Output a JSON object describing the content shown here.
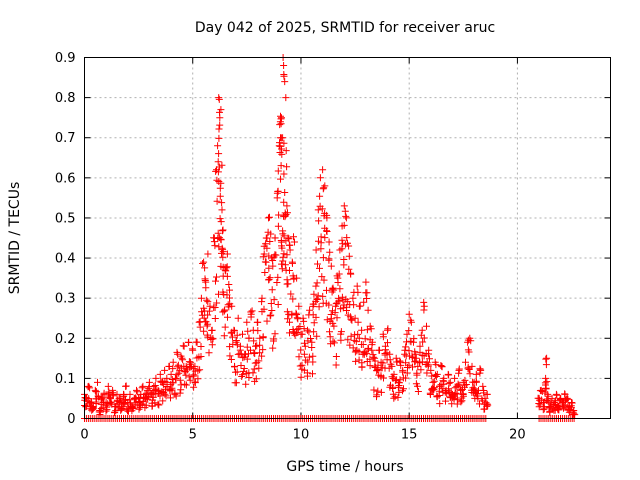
{
  "chart_data": {
    "type": "scatter",
    "title": "Day 042 of 2025, SRMTID for receiver aruc",
    "xlabel": "GPS time / hours",
    "ylabel": "SRMTID / TECUs",
    "xlim": [
      0,
      24.3
    ],
    "ylim": [
      0,
      0.9
    ],
    "xticks": [
      0,
      5,
      10,
      15,
      20
    ],
    "xtick_labels": [
      "0",
      "5",
      "10",
      "15",
      "20"
    ],
    "yticks": [
      0,
      0.1,
      0.2,
      0.3,
      0.4,
      0.5,
      0.6,
      0.7,
      0.8,
      0.9
    ],
    "ytick_labels": [
      "0",
      "0.1",
      "0.2",
      "0.3",
      "0.4",
      "0.5",
      "0.6",
      "0.7",
      "0.8",
      "0.9"
    ],
    "grid": true,
    "marker": "+",
    "color": "#ff0000",
    "series": [
      {
        "name": "SRMTID",
        "points": [
          [
            0.0,
            0.06
          ],
          [
            0.1,
            0.05
          ],
          [
            0.2,
            0.08
          ],
          [
            0.3,
            0.04
          ],
          [
            0.4,
            0.03
          ],
          [
            0.5,
            0.07
          ],
          [
            0.6,
            0.09
          ],
          [
            0.7,
            0.02
          ],
          [
            0.8,
            0.05
          ],
          [
            0.9,
            0.06
          ],
          [
            1.0,
            0.04
          ],
          [
            1.1,
            0.08
          ],
          [
            1.2,
            0.05
          ],
          [
            1.3,
            0.07
          ],
          [
            1.4,
            0.03
          ],
          [
            1.5,
            0.06
          ],
          [
            1.6,
            0.05
          ],
          [
            1.7,
            0.04
          ],
          [
            1.8,
            0.06
          ],
          [
            1.9,
            0.08
          ],
          [
            2.0,
            0.04
          ],
          [
            2.1,
            0.06
          ],
          [
            2.2,
            0.03
          ],
          [
            2.3,
            0.05
          ],
          [
            2.4,
            0.07
          ],
          [
            2.5,
            0.05
          ],
          [
            2.6,
            0.06
          ],
          [
            2.7,
            0.08
          ],
          [
            2.8,
            0.06
          ],
          [
            2.9,
            0.07
          ],
          [
            3.0,
            0.09
          ],
          [
            3.1,
            0.06
          ],
          [
            3.2,
            0.08
          ],
          [
            3.3,
            0.1
          ],
          [
            3.4,
            0.07
          ],
          [
            3.5,
            0.11
          ],
          [
            3.6,
            0.09
          ],
          [
            3.7,
            0.12
          ],
          [
            3.8,
            0.1
          ],
          [
            3.9,
            0.13
          ],
          [
            4.0,
            0.11
          ],
          [
            4.1,
            0.14
          ],
          [
            4.2,
            0.1
          ],
          [
            4.3,
            0.16
          ],
          [
            4.4,
            0.12
          ],
          [
            4.5,
            0.15
          ],
          [
            4.6,
            0.18
          ],
          [
            4.7,
            0.13
          ],
          [
            4.8,
            0.19
          ],
          [
            4.9,
            0.14
          ],
          [
            5.0,
            0.17
          ],
          [
            5.1,
            0.13
          ],
          [
            5.2,
            0.19
          ],
          [
            5.3,
            0.24
          ],
          [
            5.4,
            0.3
          ],
          [
            5.5,
            0.39
          ],
          [
            5.6,
            0.34
          ],
          [
            5.7,
            0.41
          ],
          [
            5.8,
            0.28
          ],
          [
            5.9,
            0.22
          ],
          [
            6.0,
            0.45
          ],
          [
            6.1,
            0.62
          ],
          [
            6.15,
            0.68
          ],
          [
            6.2,
            0.8
          ],
          [
            6.25,
            0.75
          ],
          [
            6.3,
            0.77
          ],
          [
            6.35,
            0.52
          ],
          [
            6.4,
            0.47
          ],
          [
            6.5,
            0.37
          ],
          [
            6.6,
            0.41
          ],
          [
            6.7,
            0.32
          ],
          [
            6.8,
            0.28
          ],
          [
            6.9,
            0.22
          ],
          [
            7.0,
            0.19
          ],
          [
            7.1,
            0.25
          ],
          [
            7.2,
            0.18
          ],
          [
            7.3,
            0.21
          ],
          [
            7.4,
            0.16
          ],
          [
            7.5,
            0.24
          ],
          [
            7.6,
            0.2
          ],
          [
            7.7,
            0.26
          ],
          [
            7.8,
            0.22
          ],
          [
            7.9,
            0.18
          ],
          [
            8.0,
            0.24
          ],
          [
            8.1,
            0.2
          ],
          [
            8.2,
            0.3
          ],
          [
            8.3,
            0.41
          ],
          [
            8.4,
            0.45
          ],
          [
            8.5,
            0.5
          ],
          [
            8.6,
            0.46
          ],
          [
            8.7,
            0.38
          ],
          [
            8.8,
            0.45
          ],
          [
            8.9,
            0.55
          ],
          [
            9.0,
            0.68
          ],
          [
            9.05,
            0.74
          ],
          [
            9.1,
            0.75
          ],
          [
            9.15,
            0.7
          ],
          [
            9.2,
            0.88
          ],
          [
            9.25,
            0.84
          ],
          [
            9.3,
            0.8
          ],
          [
            9.35,
            0.53
          ],
          [
            9.4,
            0.45
          ],
          [
            9.5,
            0.42
          ],
          [
            9.6,
            0.39
          ],
          [
            9.7,
            0.44
          ],
          [
            9.8,
            0.35
          ],
          [
            9.9,
            0.28
          ],
          [
            10.0,
            0.21
          ],
          [
            10.1,
            0.25
          ],
          [
            10.2,
            0.18
          ],
          [
            10.3,
            0.22
          ],
          [
            10.4,
            0.27
          ],
          [
            10.5,
            0.19
          ],
          [
            10.6,
            0.31
          ],
          [
            10.7,
            0.42
          ],
          [
            10.8,
            0.52
          ],
          [
            10.9,
            0.6
          ],
          [
            11.0,
            0.62
          ],
          [
            11.1,
            0.58
          ],
          [
            11.2,
            0.5
          ],
          [
            11.3,
            0.44
          ],
          [
            11.4,
            0.38
          ],
          [
            11.5,
            0.32
          ],
          [
            11.6,
            0.28
          ],
          [
            11.7,
            0.35
          ],
          [
            11.8,
            0.42
          ],
          [
            11.9,
            0.48
          ],
          [
            12.0,
            0.53
          ],
          [
            12.1,
            0.5
          ],
          [
            12.2,
            0.43
          ],
          [
            12.3,
            0.36
          ],
          [
            12.4,
            0.3
          ],
          [
            12.5,
            0.25
          ],
          [
            12.6,
            0.33
          ],
          [
            12.7,
            0.28
          ],
          [
            12.8,
            0.22
          ],
          [
            12.9,
            0.29
          ],
          [
            13.0,
            0.34
          ],
          [
            13.1,
            0.27
          ],
          [
            13.2,
            0.23
          ],
          [
            13.3,
            0.19
          ],
          [
            13.4,
            0.15
          ],
          [
            13.5,
            0.12
          ],
          [
            13.6,
            0.17
          ],
          [
            13.7,
            0.14
          ],
          [
            13.8,
            0.21
          ],
          [
            13.9,
            0.18
          ],
          [
            14.0,
            0.22
          ],
          [
            14.1,
            0.16
          ],
          [
            14.2,
            0.13
          ],
          [
            14.3,
            0.11
          ],
          [
            14.4,
            0.15
          ],
          [
            14.5,
            0.09
          ],
          [
            14.6,
            0.14
          ],
          [
            14.7,
            0.12
          ],
          [
            14.8,
            0.17
          ],
          [
            14.9,
            0.21
          ],
          [
            15.0,
            0.26
          ],
          [
            15.1,
            0.24
          ],
          [
            15.2,
            0.19
          ],
          [
            15.3,
            0.16
          ],
          [
            15.4,
            0.13
          ],
          [
            15.5,
            0.18
          ],
          [
            15.6,
            0.22
          ],
          [
            15.7,
            0.28
          ],
          [
            15.8,
            0.23
          ],
          [
            15.9,
            0.17
          ],
          [
            16.0,
            0.12
          ],
          [
            16.1,
            0.09
          ],
          [
            16.2,
            0.14
          ],
          [
            16.3,
            0.11
          ],
          [
            16.4,
            0.08
          ],
          [
            16.5,
            0.13
          ],
          [
            16.6,
            0.1
          ],
          [
            16.7,
            0.07
          ],
          [
            16.8,
            0.11
          ],
          [
            16.9,
            0.09
          ],
          [
            17.0,
            0.06
          ],
          [
            17.1,
            0.1
          ],
          [
            17.2,
            0.08
          ],
          [
            17.3,
            0.12
          ],
          [
            17.4,
            0.07
          ],
          [
            17.5,
            0.09
          ],
          [
            17.6,
            0.14
          ],
          [
            17.7,
            0.19
          ],
          [
            17.8,
            0.2
          ],
          [
            17.9,
            0.13
          ],
          [
            18.0,
            0.09
          ],
          [
            18.1,
            0.11
          ],
          [
            18.2,
            0.07
          ],
          [
            18.3,
            0.12
          ],
          [
            18.4,
            0.08
          ],
          [
            18.5,
            0.05
          ],
          [
            18.6,
            0.06
          ],
          [
            21.0,
            0.05
          ],
          [
            21.1,
            0.07
          ],
          [
            21.2,
            0.04
          ],
          [
            21.3,
            0.1
          ],
          [
            21.35,
            0.15
          ],
          [
            21.4,
            0.06
          ],
          [
            21.5,
            0.03
          ],
          [
            21.6,
            0.05
          ],
          [
            21.7,
            0.04
          ],
          [
            21.8,
            0.06
          ],
          [
            21.9,
            0.03
          ],
          [
            22.0,
            0.05
          ],
          [
            22.1,
            0.04
          ],
          [
            22.2,
            0.06
          ],
          [
            22.3,
            0.05
          ],
          [
            22.4,
            0.03
          ],
          [
            22.5,
            0.04
          ],
          [
            22.6,
            0.02
          ]
        ]
      }
    ],
    "zero_level_ranges": [
      [
        0.0,
        18.6
      ],
      [
        21.0,
        22.7
      ]
    ]
  }
}
